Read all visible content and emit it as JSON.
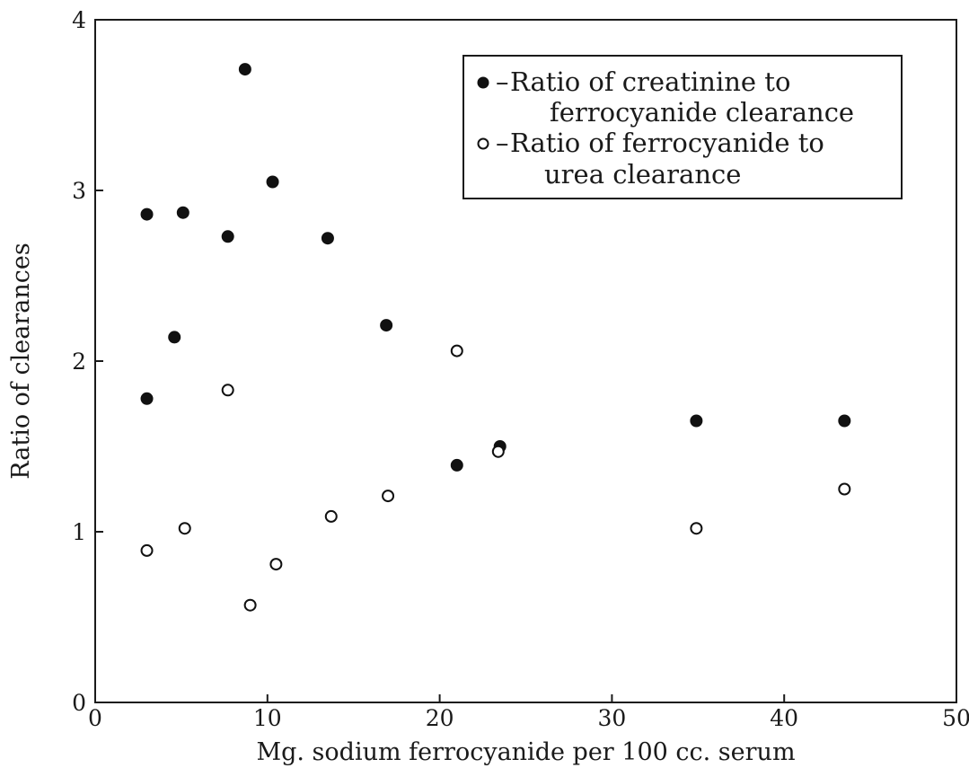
{
  "chart_data": {
    "type": "scatter",
    "xlabel": "Mg. sodium ferrocyanide per 100 cc. serum",
    "ylabel": "Ratio of clearances",
    "xlim": [
      0,
      50
    ],
    "ylim": [
      0,
      4
    ],
    "x_ticks": [
      0,
      10,
      20,
      30,
      40,
      50
    ],
    "y_ticks": [
      0,
      1,
      2,
      3,
      4
    ],
    "grid": false,
    "legend_position": "top-right",
    "series": [
      {
        "name": "Ratio of creatinine to ferrocyanide clearance",
        "legend_lines": [
          "Ratio of creatinine to",
          "ferrocyanide clearance"
        ],
        "marker": "filled-circle",
        "points": [
          {
            "x": 3.0,
            "y": 2.86
          },
          {
            "x": 5.1,
            "y": 2.87
          },
          {
            "x": 7.7,
            "y": 2.73
          },
          {
            "x": 8.7,
            "y": 3.71
          },
          {
            "x": 10.3,
            "y": 3.05
          },
          {
            "x": 13.5,
            "y": 2.72
          },
          {
            "x": 4.6,
            "y": 2.14
          },
          {
            "x": 3.0,
            "y": 1.78
          },
          {
            "x": 16.9,
            "y": 2.21
          },
          {
            "x": 21.0,
            "y": 1.39
          },
          {
            "x": 23.5,
            "y": 1.5
          },
          {
            "x": 34.9,
            "y": 1.65
          },
          {
            "x": 43.5,
            "y": 1.65
          }
        ]
      },
      {
        "name": "Ratio of ferrocyanide to urea clearance",
        "legend_lines": [
          "Ratio of ferrocyanide to",
          "urea clearance"
        ],
        "marker": "open-circle",
        "points": [
          {
            "x": 3.0,
            "y": 0.89
          },
          {
            "x": 5.2,
            "y": 1.02
          },
          {
            "x": 7.7,
            "y": 1.83
          },
          {
            "x": 9.0,
            "y": 0.57
          },
          {
            "x": 10.5,
            "y": 0.81
          },
          {
            "x": 13.7,
            "y": 1.09
          },
          {
            "x": 17.0,
            "y": 1.21
          },
          {
            "x": 21.0,
            "y": 2.06
          },
          {
            "x": 23.4,
            "y": 1.47
          },
          {
            "x": 34.9,
            "y": 1.02
          },
          {
            "x": 43.5,
            "y": 1.25
          }
        ]
      }
    ]
  }
}
